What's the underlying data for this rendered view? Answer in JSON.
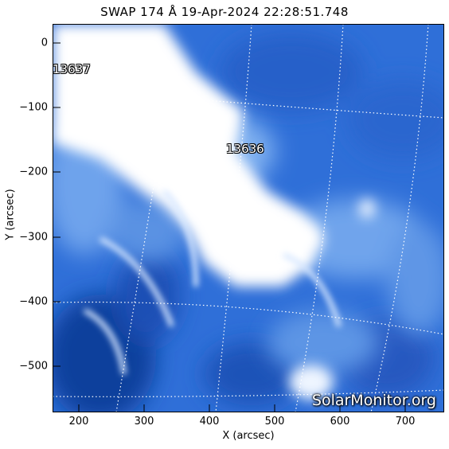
{
  "title": "SWAP 174 Å 19-Apr-2024 22:28:51.748",
  "axes": {
    "xlabel": "X (arcsec)",
    "ylabel": "Y (arcsec)",
    "xticks": [
      "200",
      "300",
      "400",
      "500",
      "600",
      "700"
    ],
    "yticks": [
      "0",
      "−100",
      "−200",
      "−300",
      "−400",
      "−500"
    ]
  },
  "regions": {
    "ar1": "13637",
    "ar2": "13636"
  },
  "watermark": "SolarMonitor.org",
  "colors": {
    "base_blue": "#2f6fd8",
    "dark_blue": "#0e3f9c",
    "bright": "#ffffff"
  }
}
